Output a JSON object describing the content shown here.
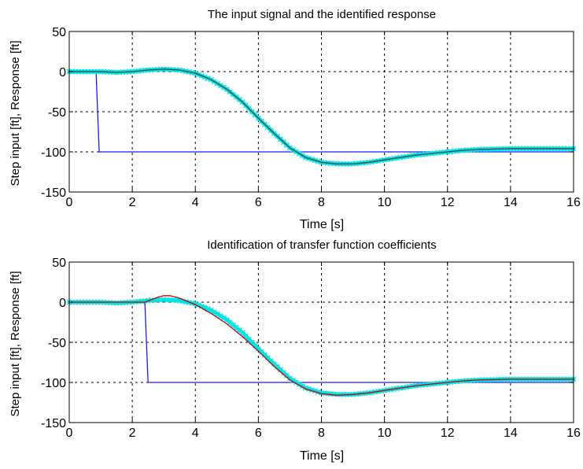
{
  "chart_data": [
    {
      "type": "line",
      "title": "The input signal and the identified response",
      "xlabel": "Time [s]",
      "ylabel": "Step input [ft], Response [ft]",
      "xlim": [
        0,
        16
      ],
      "ylim": [
        -150,
        50
      ],
      "xticks": [
        0,
        2,
        4,
        6,
        8,
        10,
        12,
        14,
        16
      ],
      "yticks": [
        50,
        0,
        -50,
        -100,
        -150
      ],
      "grid": true,
      "series": [
        {
          "color": "#1a1aff",
          "style": "solid",
          "x": [
            0,
            0.85,
            0.95,
            16
          ],
          "y": [
            0,
            0,
            -100,
            -100
          ]
        },
        {
          "color": "#00e5e5",
          "style": "marker",
          "x": [
            0,
            1,
            1.5,
            2,
            2.5,
            3,
            3.5,
            4,
            4.5,
            5,
            5.5,
            6,
            6.5,
            7,
            7.5,
            8,
            8.5,
            9,
            9.5,
            10,
            10.5,
            11,
            11.5,
            12,
            12.5,
            13,
            14,
            15,
            16
          ],
          "y": [
            0,
            0,
            -1,
            0,
            2,
            3,
            2,
            -2,
            -10,
            -22,
            -38,
            -58,
            -77,
            -95,
            -107,
            -113,
            -115,
            -115,
            -113,
            -110,
            -107,
            -104,
            -102,
            -100,
            -98,
            -97,
            -96,
            -96,
            -96
          ]
        },
        {
          "color": "#444444",
          "style": "solid",
          "x": [
            0,
            1,
            1.5,
            2,
            2.5,
            3,
            3.5,
            4,
            4.5,
            5,
            5.5,
            6,
            6.5,
            7,
            7.5,
            8,
            8.5,
            9,
            9.5,
            10,
            10.5,
            11,
            11.5,
            12,
            12.5,
            13,
            14,
            15,
            16
          ],
          "y": [
            0,
            0,
            -1,
            0,
            2,
            3,
            2,
            -2,
            -10,
            -22,
            -38,
            -58,
            -77,
            -95,
            -107,
            -113,
            -115,
            -115,
            -113,
            -110,
            -107,
            -104,
            -102,
            -100,
            -98,
            -97,
            -96,
            -96,
            -96
          ]
        }
      ]
    },
    {
      "type": "line",
      "title": "Identification of transfer function coefficients",
      "xlabel": "Time [s]",
      "ylabel": "Step input [ft], Response [ft]",
      "xlim": [
        0,
        16
      ],
      "ylim": [
        -150,
        50
      ],
      "xticks": [
        0,
        2,
        4,
        6,
        8,
        10,
        12,
        14,
        16
      ],
      "yticks": [
        50,
        0,
        -50,
        -100,
        -150
      ],
      "grid": true,
      "series": [
        {
          "color": "#1a1aff",
          "style": "solid",
          "x": [
            0,
            2.4,
            2.5,
            16
          ],
          "y": [
            0,
            0,
            -100,
            -100
          ]
        },
        {
          "color": "#00e5e5",
          "style": "marker",
          "x": [
            0,
            1,
            1.5,
            2,
            2.5,
            3,
            3.5,
            4,
            4.5,
            5,
            5.5,
            6,
            6.5,
            7,
            7.5,
            8,
            8.5,
            9,
            9.5,
            10,
            10.5,
            11,
            11.5,
            12,
            12.5,
            13,
            14,
            15,
            16
          ],
          "y": [
            0,
            0,
            -1,
            0,
            2,
            3,
            2,
            -2,
            -10,
            -22,
            -38,
            -58,
            -77,
            -95,
            -107,
            -113,
            -115,
            -115,
            -113,
            -110,
            -107,
            -104,
            -102,
            -100,
            -98,
            -97,
            -96,
            -96,
            -96
          ]
        },
        {
          "color": "#cc0000",
          "style": "solid",
          "x": [
            0,
            2.4,
            2.6,
            2.8,
            3,
            3.2,
            3.5,
            4,
            4.5,
            5,
            5.5,
            6,
            6.5,
            7,
            7.5,
            8,
            8.5,
            9,
            9.5,
            10,
            10.5,
            11,
            11.5,
            12,
            12.5,
            13,
            14,
            15,
            16
          ],
          "y": [
            0,
            0,
            3,
            6,
            8,
            8,
            5,
            -3,
            -14,
            -27,
            -43,
            -61,
            -80,
            -97,
            -108,
            -114,
            -116,
            -115,
            -113,
            -110,
            -107,
            -104,
            -102,
            -100,
            -98,
            -97,
            -96,
            -96,
            -96
          ]
        }
      ]
    }
  ]
}
